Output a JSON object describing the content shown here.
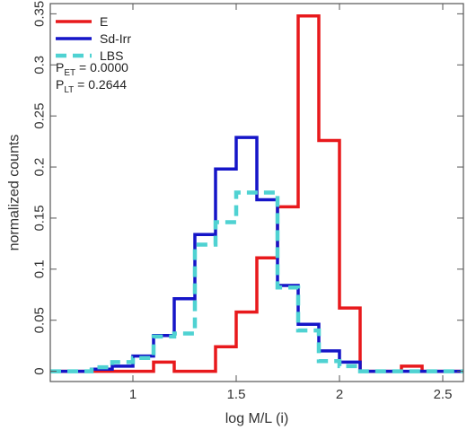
{
  "chart_data": {
    "type": "line",
    "xlabel": "log M/L (i)",
    "ylabel": "normalized counts",
    "xlim": [
      0.6,
      2.6
    ],
    "ylim": [
      -0.01,
      0.36
    ],
    "xticks": [
      {
        "value": 1,
        "label": "1"
      },
      {
        "value": 1.5,
        "label": "1.5"
      },
      {
        "value": 2,
        "label": "2"
      },
      {
        "value": 2.5,
        "label": "2.5"
      }
    ],
    "yticks": [
      {
        "value": 0,
        "label": "0"
      },
      {
        "value": 0.05,
        "label": "0.05"
      },
      {
        "value": 0.1,
        "label": "0.1"
      },
      {
        "value": 0.15,
        "label": "0.15"
      },
      {
        "value": 0.2,
        "label": "0.2"
      },
      {
        "value": 0.25,
        "label": "0.25"
      },
      {
        "value": 0.3,
        "label": "0.3"
      },
      {
        "value": 0.35,
        "label": "0.35"
      }
    ],
    "bin_edges": [
      0.6,
      0.7,
      0.8,
      0.9,
      1.0,
      1.1,
      1.2,
      1.3,
      1.4,
      1.5,
      1.6,
      1.7,
      1.8,
      1.9,
      2.0,
      2.1,
      2.2,
      2.3,
      2.4,
      2.5,
      2.6
    ],
    "series": [
      {
        "name": "E",
        "color": "#e8191c",
        "style": "solid",
        "values": [
          0,
          0,
          0,
          0,
          0,
          0.009,
          0,
          0,
          0.024,
          0.058,
          0.111,
          0.161,
          0.348,
          0.226,
          0.062,
          0,
          0,
          0.005,
          0,
          0
        ]
      },
      {
        "name": "Sd-Irr",
        "color": "#1515c8",
        "style": "solid",
        "values": [
          0,
          0,
          0.002,
          0.005,
          0.015,
          0.035,
          0.071,
          0.134,
          0.198,
          0.229,
          0.168,
          0.084,
          0.046,
          0.02,
          0.009,
          0,
          0,
          0,
          0,
          0
        ]
      },
      {
        "name": "LBS",
        "color": "#4fd2d2",
        "style": "dashed",
        "values": [
          0,
          0,
          0.004,
          0.009,
          0.013,
          0.034,
          0.037,
          0.124,
          0.146,
          0.175,
          0.175,
          0.082,
          0.04,
          0.01,
          0.005,
          0,
          0,
          0,
          0,
          0
        ]
      }
    ],
    "legend": "top-left",
    "grid": false
  },
  "stats": [
    {
      "main": "P",
      "sub": "ET",
      "value": " = 0.0000"
    },
    {
      "main": "P",
      "sub": "LT",
      "value": " = 0.2644"
    }
  ]
}
